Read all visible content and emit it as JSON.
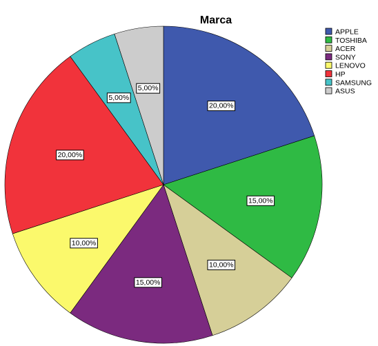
{
  "chart_data": {
    "type": "pie",
    "title": "Marca",
    "legend_position": "top-right",
    "categories": [
      "APPLE",
      "TOSHIBA",
      "ACER",
      "SONY",
      "LENOVO",
      "HP",
      "SAMSUNG",
      "ASUS"
    ],
    "values": [
      20,
      15,
      10,
      15,
      10,
      20,
      5,
      5
    ],
    "labels": [
      "20,00%",
      "15,00%",
      "10,00%",
      "15,00%",
      "10,00%",
      "20,00%",
      "5,00%",
      "5,00%"
    ],
    "colors": [
      "#3f59ad",
      "#2fba44",
      "#d6cf98",
      "#7b2a7f",
      "#fbf96c",
      "#f1333b",
      "#47c3c8",
      "#cccccc"
    ],
    "start_angle": "12 o'clock",
    "direction": "clockwise"
  }
}
